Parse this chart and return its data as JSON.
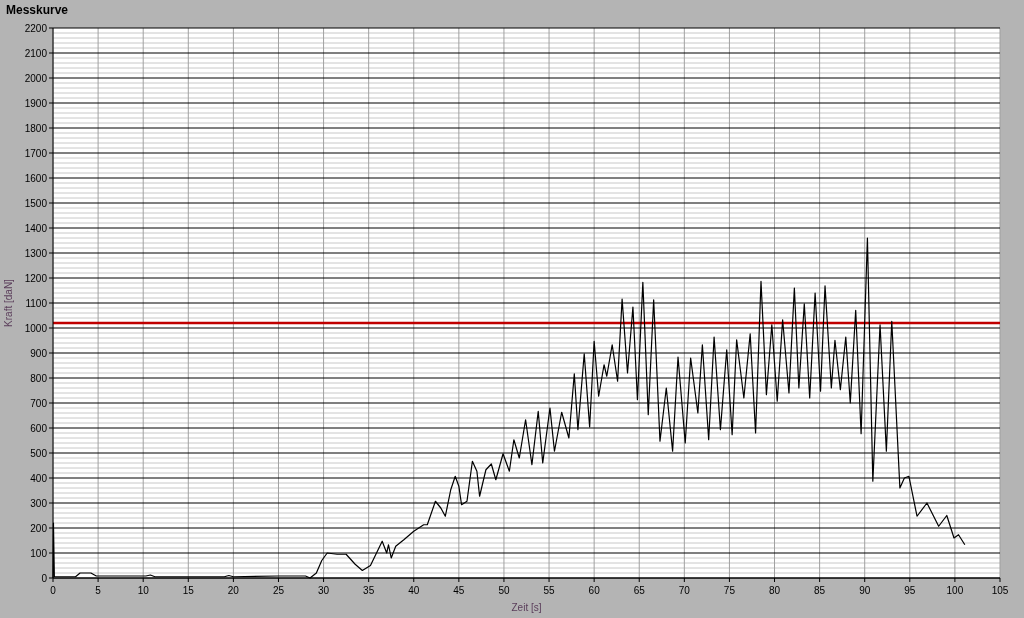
{
  "chart_data": {
    "type": "line",
    "title": "Messkurve",
    "xlabel": "Zeit [s]",
    "ylabel": "Kraft [daN]",
    "xlim": [
      0,
      105
    ],
    "xticks": [
      0,
      5,
      10,
      15,
      20,
      25,
      30,
      35,
      40,
      45,
      50,
      55,
      60,
      65,
      70,
      75,
      80,
      85,
      90,
      95,
      100,
      105
    ],
    "ylim": [
      0,
      2200
    ],
    "yticks": [
      0,
      100,
      200,
      300,
      400,
      500,
      600,
      700,
      800,
      900,
      1000,
      1100,
      1200,
      1300,
      1400,
      1500,
      1600,
      1700,
      1800,
      1900,
      2000,
      2100,
      2200
    ],
    "grid": true,
    "marker": "none",
    "line_style": "solid",
    "ref_lines": [
      {
        "axis": "y",
        "value": 1020,
        "color": "#c00000"
      }
    ],
    "series": [
      {
        "color": "#000000",
        "x": [
          0,
          0.05,
          0.15,
          2.5,
          3,
          4.2,
          4.8,
          10.3,
          10.8,
          11.3,
          19,
          19.5,
          20,
          25,
          28,
          28.5,
          29.2,
          29.8,
          30.4,
          31.5,
          32.5,
          33.5,
          34.3,
          35.2,
          36.5,
          37,
          37.2,
          37.5,
          38,
          38.9,
          40,
          41.1,
          41.5,
          42.4,
          43,
          43.5,
          44.1,
          44.6,
          45,
          45.3,
          45.9,
          46.5,
          47,
          47.3,
          48,
          48.6,
          49.1,
          49.9,
          50.6,
          51.1,
          51.7,
          52.4,
          53.1,
          53.8,
          54.3,
          55.1,
          55.6,
          56.4,
          57.2,
          57.8,
          58.2,
          58.9,
          59.5,
          60,
          60.5,
          61.1,
          61.4,
          62,
          62.6,
          63.1,
          63.7,
          64.3,
          64.8,
          65.4,
          66,
          66.6,
          67.3,
          68,
          68.7,
          69.3,
          70.1,
          70.7,
          71.5,
          72,
          72.7,
          73.3,
          74,
          74.7,
          75.3,
          75.8,
          76.6,
          77.3,
          77.9,
          78.5,
          79.1,
          79.7,
          80.3,
          80.9,
          81.6,
          82.2,
          82.7,
          83.3,
          83.9,
          84.5,
          85.1,
          85.6,
          86.3,
          86.7,
          87.3,
          87.9,
          88.4,
          89,
          89.6,
          90.3,
          90.9,
          91.7,
          92.4,
          93,
          93.9,
          94.4,
          94.9,
          95.8,
          96.9,
          98.2,
          99.1,
          99.9,
          100.4,
          101.1
        ],
        "values": [
          0,
          220,
          5,
          5,
          20,
          20,
          8,
          8,
          12,
          5,
          5,
          10,
          5,
          8,
          8,
          0,
          20,
          70,
          100,
          95,
          95,
          55,
          30,
          50,
          147,
          100,
          133,
          80,
          127,
          153,
          187,
          213,
          213,
          307,
          280,
          247,
          353,
          407,
          367,
          293,
          307,
          467,
          427,
          327,
          433,
          456,
          393,
          497,
          427,
          553,
          480,
          633,
          453,
          667,
          460,
          680,
          507,
          663,
          560,
          817,
          593,
          897,
          604,
          947,
          727,
          853,
          807,
          933,
          787,
          1116,
          820,
          1084,
          713,
          1183,
          653,
          1113,
          547,
          760,
          507,
          884,
          540,
          880,
          660,
          933,
          553,
          964,
          593,
          913,
          573,
          953,
          720,
          977,
          580,
          1187,
          733,
          1013,
          707,
          1033,
          740,
          1160,
          760,
          1097,
          720,
          1140,
          747,
          1169,
          760,
          951,
          753,
          964,
          700,
          1071,
          577,
          1360,
          387,
          1013,
          507,
          1027,
          360,
          400,
          407,
          247,
          300,
          207,
          250,
          160,
          173,
          133
        ]
      }
    ]
  }
}
